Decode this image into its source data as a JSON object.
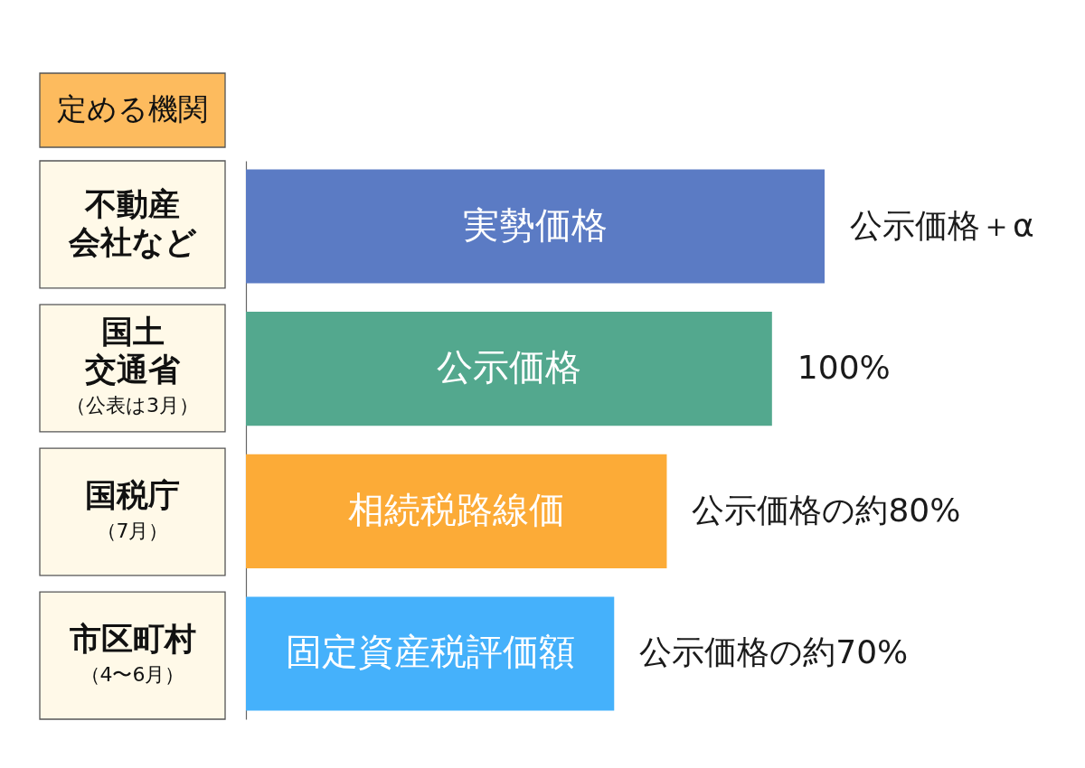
{
  "chart_data": {
    "type": "bar",
    "orientation": "horizontal",
    "categories": [
      "実勢価格",
      "公示価格",
      "相続税路線価",
      "固定資産税評価額"
    ],
    "values": [
      110,
      100,
      80,
      70
    ],
    "colors": [
      "#5b7bc4",
      "#53a88e",
      "#fcab37",
      "#45b1fb"
    ],
    "value_labels": [
      "公示価格＋α",
      "100%",
      "公示価格の約80%",
      "公示価格の約70%"
    ],
    "annotations": [
      "定める機関",
      "不動産会社など",
      "国土交通省",
      "（公表は3月）",
      "国税庁",
      "（7月）",
      "市区町村",
      "（4〜6月）"
    ]
  }
}
